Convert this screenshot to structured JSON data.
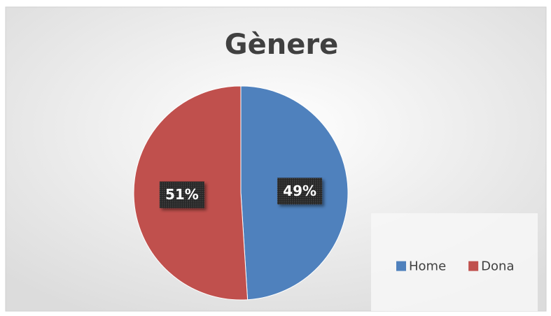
{
  "chart_data": {
    "type": "pie",
    "title": "Gènere",
    "categories": [
      "Home",
      "Dona"
    ],
    "values": [
      49,
      51
    ],
    "value_labels": [
      "49%",
      "51%"
    ],
    "colors": [
      "#4f81bd",
      "#c0504d"
    ],
    "legend": "bottom-right"
  }
}
